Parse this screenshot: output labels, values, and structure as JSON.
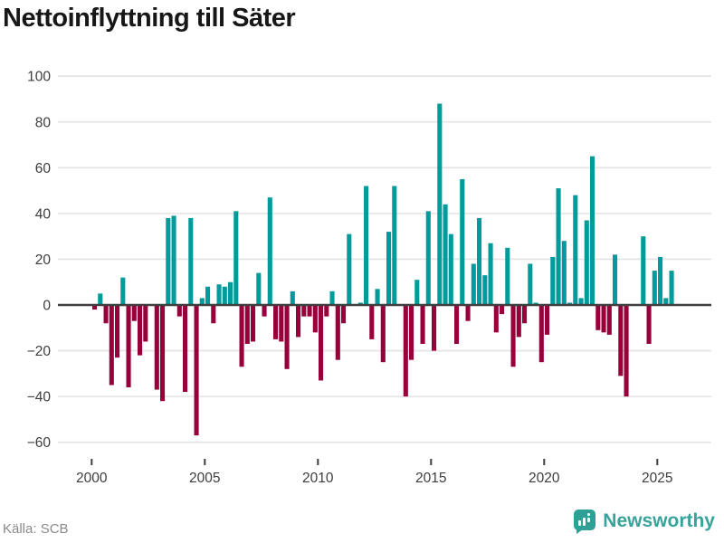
{
  "title": "Nettoinflyttning till Säter",
  "footer": {
    "source_label": "Källa: SCB",
    "brand_name": "Newsworthy"
  },
  "chart_data": {
    "type": "bar",
    "title": "Nettoinflyttning till Säter",
    "unit": "persons per quarter (net migration)",
    "start_period": "2000Q1",
    "end_period": "2025Q3",
    "frequency": "quarterly",
    "values": [
      -2,
      5,
      -8,
      -35,
      -23,
      12,
      -36,
      -7,
      -22,
      -16,
      0,
      -37,
      -42,
      38,
      39,
      -5,
      -38,
      38,
      -57,
      3,
      8,
      -8,
      9,
      8,
      10,
      41,
      -27,
      -17,
      -16,
      14,
      -5,
      47,
      -15,
      -16,
      -28,
      6,
      -14,
      -5,
      -5,
      -12,
      -33,
      -5,
      6,
      -24,
      -8,
      31,
      0,
      1,
      52,
      -15,
      7,
      -25,
      32,
      52,
      0,
      -40,
      -24,
      11,
      -17,
      41,
      -20,
      88,
      44,
      31,
      -17,
      55,
      -7,
      18,
      38,
      13,
      27,
      -12,
      -4,
      25,
      -27,
      -14,
      -8,
      18,
      1,
      -25,
      -13,
      21,
      51,
      28,
      1,
      48,
      3,
      37,
      65,
      -11,
      -12,
      -13,
      22,
      -31,
      -40,
      0,
      0,
      30,
      -17,
      15,
      21,
      3,
      15
    ],
    "xticks": [
      2000,
      2005,
      2010,
      2015,
      2020,
      2025
    ],
    "yticks": [
      100,
      80,
      60,
      40,
      20,
      0,
      -20,
      -40,
      -60
    ],
    "ylim": [
      -60,
      100
    ],
    "grid": true,
    "legend": false,
    "colors": {
      "positive": "#019b9b",
      "negative": "#98003c",
      "zero_line": "#3f3f3f",
      "gridline": "#e3e3e3",
      "tick_label": "#3d3d3d"
    }
  }
}
